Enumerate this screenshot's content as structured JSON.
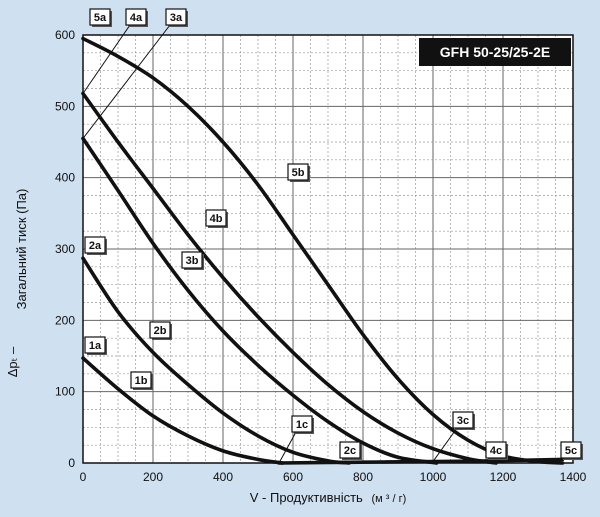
{
  "chart_data": {
    "type": "line",
    "title": "GFH 50-25/25-2E",
    "xlabel": "V - Продуктивність",
    "xunit": "(м ³ / г)",
    "ylabel": "Загальний тиск (Па)",
    "ysymbol": "Δpₜ –",
    "xlim": [
      0,
      1400
    ],
    "ylim": [
      0,
      600
    ],
    "xticks": [
      "0",
      "200",
      "400",
      "600",
      "800",
      "1000",
      "1200",
      "1400"
    ],
    "yticks": [
      "0",
      "100",
      "200",
      "300",
      "400",
      "500",
      "600"
    ],
    "grid": true,
    "colors": {
      "background": "#cfe0f0",
      "plot": "#ffffff",
      "grid": "#888888",
      "line": "#111111",
      "title_box": "#111111"
    },
    "series": [
      {
        "name": "1",
        "x": [
          0,
          100,
          200,
          300,
          400,
          500,
          570
        ],
        "y": [
          147,
          104,
          66,
          38,
          17,
          5,
          0
        ]
      },
      {
        "name": "2",
        "x": [
          0,
          100,
          200,
          300,
          400,
          500,
          600,
          700,
          760
        ],
        "y": [
          287,
          212,
          155,
          110,
          70,
          38,
          15,
          3,
          0
        ]
      },
      {
        "name": "3",
        "x": [
          0,
          100,
          200,
          300,
          400,
          500,
          600,
          700,
          800,
          900,
          1010
        ],
        "y": [
          455,
          382,
          308,
          242,
          185,
          137,
          95,
          58,
          28,
          8,
          0
        ]
      },
      {
        "name": "4",
        "x": [
          0,
          100,
          200,
          300,
          400,
          500,
          600,
          700,
          800,
          900,
          1000,
          1100,
          1180
        ],
        "y": [
          518,
          450,
          385,
          320,
          260,
          205,
          155,
          110,
          72,
          42,
          20,
          6,
          0
        ]
      },
      {
        "name": "5",
        "x": [
          0,
          100,
          200,
          300,
          400,
          500,
          600,
          700,
          800,
          900,
          1000,
          1100,
          1200,
          1300,
          1370
        ],
        "y": [
          595,
          570,
          540,
          500,
          450,
          390,
          320,
          250,
          180,
          118,
          68,
          32,
          10,
          2,
          0
        ]
      },
      {
        "name": "",
        "x": [
          560,
          760,
          1000,
          1180,
          1370
        ],
        "y": [
          0,
          1,
          2,
          3,
          5
        ]
      }
    ],
    "labels": [
      {
        "text": "1a",
        "x": 0,
        "y": 147
      },
      {
        "text": "1b",
        "x": 100,
        "y": 104
      },
      {
        "text": "1c",
        "x": 560,
        "y": 0
      },
      {
        "text": "2a",
        "x": 0,
        "y": 287
      },
      {
        "text": "2b",
        "x": 200,
        "y": 155
      },
      {
        "text": "2c",
        "x": 760,
        "y": 1
      },
      {
        "text": "3a",
        "x": 0,
        "y": 455
      },
      {
        "text": "3b",
        "x": 300,
        "y": 242
      },
      {
        "text": "3c",
        "x": 1000,
        "y": 2
      },
      {
        "text": "4a",
        "x": 0,
        "y": 518
      },
      {
        "text": "4b",
        "x": 400,
        "y": 320
      },
      {
        "text": "4c",
        "x": 1180,
        "y": 3
      },
      {
        "text": "5a",
        "x": 0,
        "y": 595
      },
      {
        "text": "5b",
        "x": 600,
        "y": 400
      },
      {
        "text": "5c",
        "x": 1370,
        "y": 5
      }
    ]
  }
}
